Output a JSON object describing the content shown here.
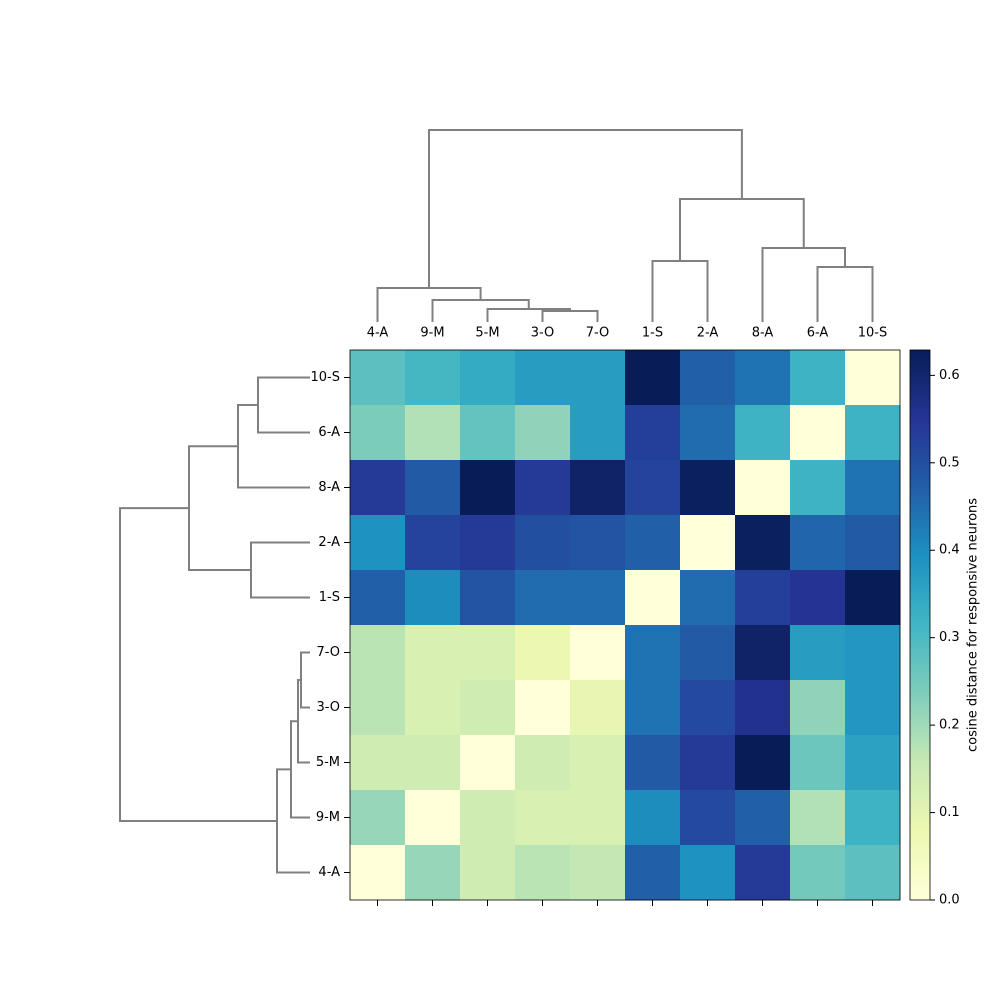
{
  "chart_data": {
    "type": "heatmap",
    "x_categories": [
      "4-A",
      "9-M",
      "5-M",
      "3-O",
      "7-O",
      "1-S",
      "2-A",
      "8-A",
      "6-A",
      "10-S"
    ],
    "y_categories": [
      "10-S",
      "6-A",
      "8-A",
      "2-A",
      "1-S",
      "7-O",
      "3-O",
      "5-M",
      "9-M",
      "4-A"
    ],
    "values": [
      [
        0.28,
        0.31,
        0.34,
        0.37,
        0.37,
        0.63,
        0.47,
        0.44,
        0.32,
        0
      ],
      [
        0.24,
        0.18,
        0.27,
        0.22,
        0.37,
        0.53,
        0.45,
        0.32,
        0,
        0.32
      ],
      [
        0.54,
        0.48,
        0.63,
        0.54,
        0.61,
        0.52,
        0.62,
        0,
        0.32,
        0.44
      ],
      [
        0.39,
        0.52,
        0.54,
        0.5,
        0.49,
        0.47,
        0,
        0.62,
        0.46,
        0.48
      ],
      [
        0.47,
        0.4,
        0.49,
        0.45,
        0.45,
        0,
        0.45,
        0.53,
        0.55,
        0.63
      ],
      [
        0.17,
        0.12,
        0.12,
        0.08,
        0,
        0.44,
        0.48,
        0.61,
        0.37,
        0.38
      ],
      [
        0.17,
        0.12,
        0.14,
        0,
        0.09,
        0.44,
        0.51,
        0.56,
        0.22,
        0.38
      ],
      [
        0.14,
        0.14,
        0,
        0.14,
        0.12,
        0.48,
        0.54,
        0.63,
        0.26,
        0.36
      ],
      [
        0.21,
        0,
        0.14,
        0.12,
        0.12,
        0.4,
        0.51,
        0.47,
        0.18,
        0.32
      ],
      [
        0,
        0.21,
        0.14,
        0.17,
        0.16,
        0.47,
        0.39,
        0.54,
        0.25,
        0.28
      ]
    ],
    "colormap": [
      "#ffffd9",
      "#edf8b1",
      "#c7e9b4",
      "#7fcdbb",
      "#41b6c4",
      "#1d91c0",
      "#225ea8",
      "#253494",
      "#081d58"
    ],
    "colorbar_label": "cosine distance for responsive neurons",
    "zlim": [
      0,
      0.629
    ],
    "zticks": [
      {
        "value": 0,
        "label": "0.0"
      },
      0.1,
      0.2,
      0.3,
      0.4,
      0.5,
      0.6
    ]
  }
}
